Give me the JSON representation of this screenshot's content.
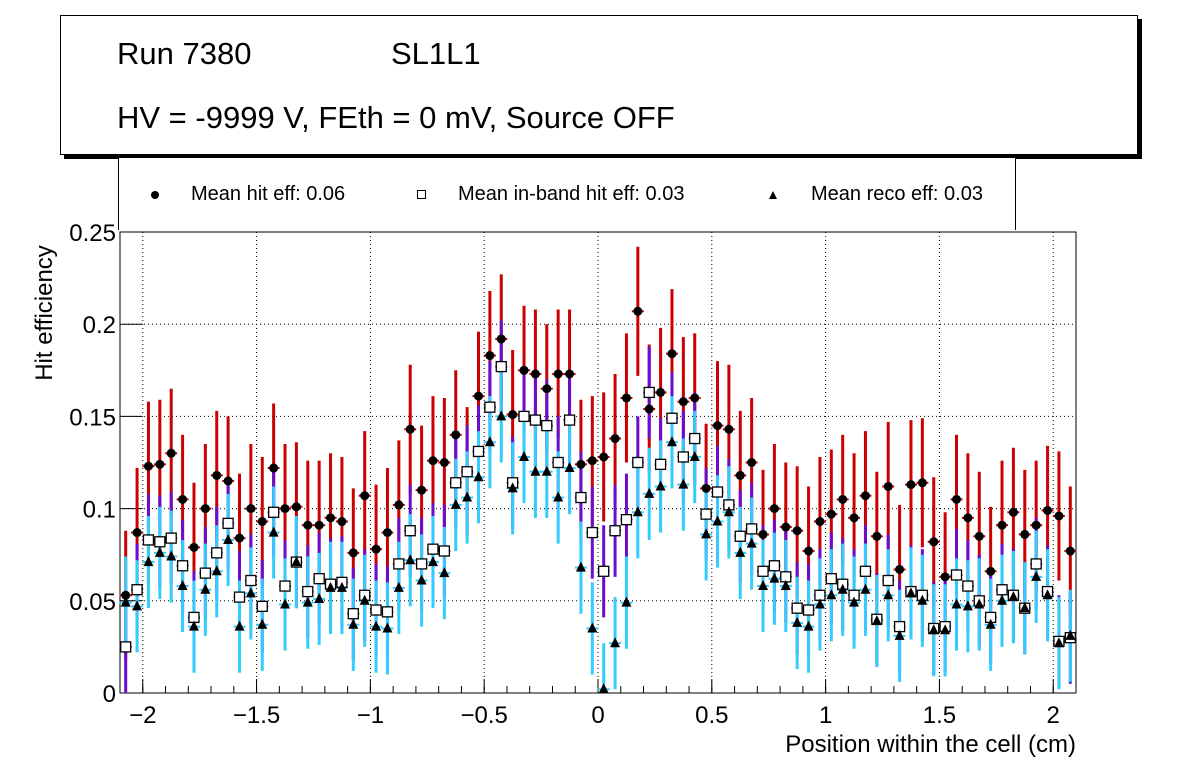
{
  "title_box": {
    "line1_left": "Run 7380",
    "line1_right": "SL1L1",
    "line2": "HV = -9999 V, FEth = 0 mV, Source OFF"
  },
  "legend": [
    {
      "marker": "filled-circle",
      "label": "Mean hit  eff: 0.06"
    },
    {
      "marker": "open-square",
      "label": "Mean in-band hit eff: 0.03"
    },
    {
      "marker": "filled-triangle",
      "label": "Mean reco eff: 0.03"
    }
  ],
  "colors": {
    "hit_err": "#cc0000",
    "inband_err": "#6a0dcc",
    "reco_err": "#33ccff"
  },
  "chart_data": {
    "type": "scatter",
    "title": "Run 7380 SL1L1 — HV = -9999 V, FEth = 0 mV, Source OFF",
    "xlabel": "Position within the cell (cm)",
    "ylabel": "Hit efficiency",
    "xlim": [
      -2.1,
      2.1
    ],
    "ylim": [
      0,
      0.25
    ],
    "xticks": [
      "-2",
      "-1.5",
      "-1",
      "-0.5",
      "0",
      "0.5",
      "1",
      "1.5",
      "2"
    ],
    "xtick_values": [
      -2,
      -1.5,
      -1,
      -0.5,
      0,
      0.5,
      1,
      1.5,
      2
    ],
    "yticks": [
      "0",
      "0.05",
      "0.1",
      "0.15",
      "0.2",
      "0.25"
    ],
    "ytick_values": [
      0,
      0.05,
      0.1,
      0.15,
      0.2,
      0.25
    ],
    "grid": true,
    "legend_position": "top",
    "x_start": -2.075,
    "x_step": 0.05,
    "series": [
      {
        "name": "Mean hit  eff: 0.06",
        "marker": "circle",
        "values": [
          0.053,
          0.087,
          0.123,
          0.124,
          0.13,
          0.105,
          0.079,
          0.1,
          0.118,
          0.115,
          0.084,
          0.1,
          0.093,
          0.122,
          0.1,
          0.101,
          0.091,
          0.091,
          0.095,
          0.093,
          0.076,
          0.107,
          0.078,
          0.087,
          0.102,
          0.143,
          0.11,
          0.126,
          0.125,
          0.14,
          0.12,
          0.161,
          0.183,
          0.192,
          0.151,
          0.175,
          0.173,
          0.165,
          0.173,
          0.173,
          0.124,
          0.126,
          0.128,
          0.138,
          0.16,
          0.207,
          0.154,
          0.163,
          0.184,
          0.158,
          0.16,
          0.111,
          0.145,
          0.143,
          0.118,
          0.125,
          0.086,
          0.1,
          0.09,
          0.088,
          0.077,
          0.093,
          0.097,
          0.105,
          0.095,
          0.107,
          0.085,
          0.112,
          0.067,
          0.113,
          0.114,
          0.082,
          0.063,
          0.105,
          0.095,
          0.085,
          0.066,
          0.091,
          0.098,
          0.086,
          0.091,
          0.099,
          0.096,
          0.077
        ],
        "error": 0.035
      },
      {
        "name": "Mean in-band hit eff: 0.03",
        "marker": "square",
        "values": [
          0.025,
          0.056,
          0.083,
          0.082,
          0.084,
          0.069,
          0.041,
          0.065,
          0.076,
          0.092,
          0.052,
          0.061,
          0.047,
          0.098,
          0.058,
          0.071,
          0.055,
          0.062,
          0.059,
          0.06,
          0.043,
          0.053,
          0.045,
          0.044,
          0.07,
          0.088,
          0.07,
          0.078,
          0.077,
          0.114,
          0.12,
          0.131,
          0.155,
          0.177,
          0.114,
          0.15,
          0.148,
          0.145,
          0.125,
          0.148,
          0.106,
          0.087,
          0.066,
          0.088,
          0.094,
          0.125,
          0.163,
          0.124,
          0.149,
          0.128,
          0.138,
          0.097,
          0.109,
          0.102,
          0.085,
          0.089,
          0.066,
          0.069,
          0.063,
          0.046,
          0.045,
          0.053,
          0.062,
          0.059,
          0.053,
          0.066,
          0.04,
          0.061,
          0.036,
          0.055,
          0.053,
          0.035,
          0.036,
          0.064,
          0.058,
          0.05,
          0.041,
          0.056,
          0.053,
          0.046,
          0.07,
          0.055,
          0.028,
          0.03
        ],
        "error": 0.025
      },
      {
        "name": "Mean reco eff: 0.03",
        "marker": "triangle",
        "values": [
          0.049,
          0.047,
          0.071,
          0.076,
          0.074,
          0.058,
          0.036,
          0.056,
          0.066,
          0.083,
          0.036,
          0.054,
          0.037,
          0.087,
          0.048,
          0.071,
          0.049,
          0.051,
          0.057,
          0.057,
          0.037,
          0.05,
          0.036,
          0.035,
          0.057,
          0.072,
          0.061,
          0.071,
          0.065,
          0.102,
          0.106,
          0.117,
          0.136,
          0.15,
          0.111,
          0.128,
          0.12,
          0.12,
          0.106,
          0.122,
          0.068,
          0.035,
          0.002,
          0.027,
          0.049,
          0.098,
          0.108,
          0.112,
          0.136,
          0.113,
          0.128,
          0.086,
          0.093,
          0.098,
          0.076,
          0.081,
          0.058,
          0.062,
          0.058,
          0.038,
          0.036,
          0.048,
          0.053,
          0.056,
          0.049,
          0.056,
          0.039,
          0.053,
          0.031,
          0.054,
          0.05,
          0.034,
          0.034,
          0.048,
          0.047,
          0.048,
          0.037,
          0.05,
          0.052,
          0.046,
          0.063,
          0.053,
          0.027,
          0.031
        ],
        "error": 0.025
      }
    ]
  }
}
